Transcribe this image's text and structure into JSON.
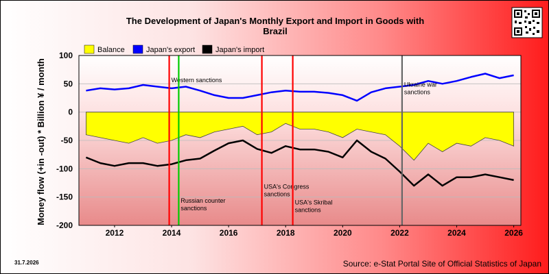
{
  "chart_data": {
    "type": "line",
    "title": "The Development of Japan's Monthly Export and Import in Goods with",
    "title_line2": "Brazil",
    "ylabel": "Money flow (+in -out) * Billion ¥ / month",
    "ylim": [
      -200,
      100
    ],
    "xlim": [
      "2010-10",
      "2026-04"
    ],
    "y_ticks": [
      "100",
      "50",
      "0",
      "-50",
      "-100",
      "-150",
      "-200"
    ],
    "x_ticks": [
      "2012",
      "2014",
      "2016",
      "2018",
      "2020",
      "2022",
      "2024",
      "2026"
    ],
    "grid": "horizontal",
    "legend_position": "top-left",
    "series": [
      {
        "name": "Balance",
        "color": "#ffff00",
        "style": "area",
        "x": [
          "2011-01",
          "2011-07",
          "2012-01",
          "2012-07",
          "2013-01",
          "2013-07",
          "2014-01",
          "2014-07",
          "2015-01",
          "2015-07",
          "2016-01",
          "2016-07",
          "2017-01",
          "2017-07",
          "2018-01",
          "2018-07",
          "2019-01",
          "2019-07",
          "2020-01",
          "2020-07",
          "2021-01",
          "2021-07",
          "2022-01",
          "2022-07",
          "2023-01",
          "2023-07",
          "2024-01",
          "2024-07",
          "2025-01",
          "2025-07",
          "2026-01"
        ],
        "values": [
          -40,
          -45,
          -50,
          -55,
          -45,
          -55,
          -50,
          -40,
          -45,
          -35,
          -30,
          -25,
          -40,
          -35,
          -20,
          -30,
          -30,
          -35,
          -45,
          -30,
          -35,
          -40,
          -60,
          -85,
          -55,
          -70,
          -55,
          -60,
          -45,
          -50,
          -60
        ]
      },
      {
        "name": "Japan's export",
        "color": "#0000ff",
        "style": "line",
        "x": [
          "2011-01",
          "2011-07",
          "2012-01",
          "2012-07",
          "2013-01",
          "2013-07",
          "2014-01",
          "2014-07",
          "2015-01",
          "2015-07",
          "2016-01",
          "2016-07",
          "2017-01",
          "2017-07",
          "2018-01",
          "2018-07",
          "2019-01",
          "2019-07",
          "2020-01",
          "2020-07",
          "2021-01",
          "2021-07",
          "2022-01",
          "2022-07",
          "2023-01",
          "2023-07",
          "2024-01",
          "2024-07",
          "2025-01",
          "2025-07",
          "2026-01"
        ],
        "values": [
          38,
          42,
          40,
          42,
          48,
          45,
          42,
          45,
          38,
          30,
          25,
          25,
          30,
          35,
          38,
          36,
          36,
          34,
          30,
          20,
          35,
          42,
          45,
          48,
          55,
          50,
          55,
          62,
          68,
          60,
          65
        ]
      },
      {
        "name": "Japan's import",
        "color": "#000000",
        "style": "line",
        "x": [
          "2011-01",
          "2011-07",
          "2012-01",
          "2012-07",
          "2013-01",
          "2013-07",
          "2014-01",
          "2014-07",
          "2015-01",
          "2015-07",
          "2016-01",
          "2016-07",
          "2017-01",
          "2017-07",
          "2018-01",
          "2018-07",
          "2019-01",
          "2019-07",
          "2020-01",
          "2020-07",
          "2021-01",
          "2021-07",
          "2022-01",
          "2022-07",
          "2023-01",
          "2023-07",
          "2024-01",
          "2024-07",
          "2025-01",
          "2025-07",
          "2026-01"
        ],
        "values": [
          -80,
          -90,
          -95,
          -90,
          -90,
          -95,
          -92,
          -85,
          -82,
          -68,
          -55,
          -50,
          -65,
          -72,
          -60,
          -66,
          -66,
          -70,
          -80,
          -50,
          -70,
          -82,
          -105,
          -130,
          -110,
          -130,
          -115,
          -115,
          -110,
          -115,
          -120
        ]
      }
    ],
    "events": [
      {
        "x": "2013-12",
        "label": "Western sanctions",
        "color": "#ff0000",
        "label_level": 53
      },
      {
        "x": "2014-04",
        "label": "Russian counter sanctions",
        "color": "#00cc00",
        "label_level": -160
      },
      {
        "x": "2017-03",
        "label": "USA's Congress sanctions",
        "color": "#ff0000",
        "label_level": -135
      },
      {
        "x": "2018-04",
        "label": "USA's Skribal sanctions",
        "color": "#ff0000",
        "label_level": -163
      },
      {
        "x": "2022-02",
        "label": "Ukraine war sanctions",
        "color": "#666666",
        "label_level": 45
      }
    ]
  },
  "footer": {
    "source": "Source: e-Stat Portal Site of Official Statistics of Japan",
    "date": "31.7.2026"
  }
}
